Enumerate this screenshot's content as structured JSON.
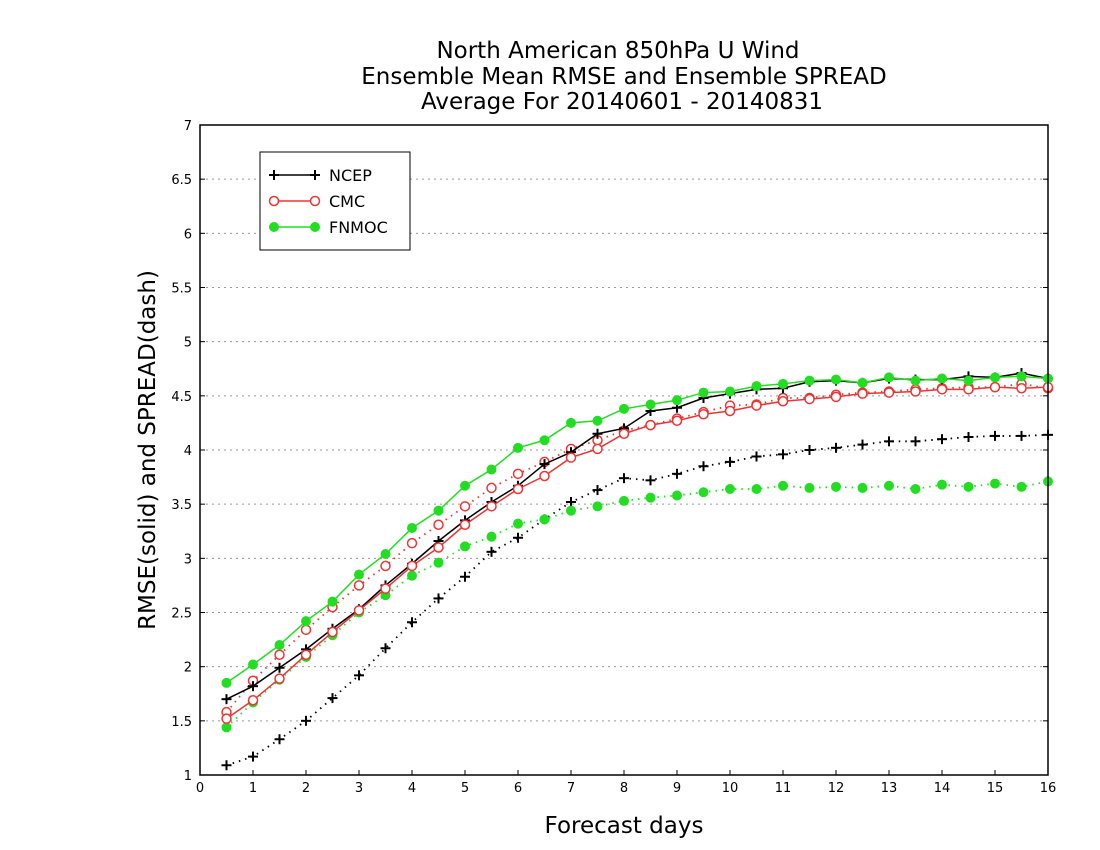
{
  "chart_data": {
    "type": "line",
    "title": [
      "North American 850hPa U Wind",
      "Ensemble Mean RMSE and Ensemble SPREAD",
      "Average For 20140601 - 20140831"
    ],
    "xlabel": "Forecast days",
    "ylabel": "RMSE(solid) and SPREAD(dash)",
    "xlim": [
      0,
      16
    ],
    "ylim": [
      1,
      7
    ],
    "xticks": [
      0,
      1,
      2,
      3,
      4,
      5,
      6,
      7,
      8,
      9,
      10,
      11,
      12,
      13,
      14,
      15,
      16
    ],
    "yticks": [
      1,
      1.5,
      2,
      2.5,
      3,
      3.5,
      4,
      4.5,
      5,
      5.5,
      6,
      6.5,
      7
    ],
    "grid": true,
    "legend_position": "top-left",
    "x": [
      0.5,
      1,
      1.5,
      2,
      2.5,
      3,
      3.5,
      4,
      4.5,
      5,
      5.5,
      6,
      6.5,
      7,
      7.5,
      8,
      8.5,
      9,
      9.5,
      10,
      10.5,
      11,
      11.5,
      12,
      12.5,
      13,
      13.5,
      14,
      14.5,
      15,
      15.5,
      16
    ],
    "series": [
      {
        "name": "NCEP",
        "kind": "rmse",
        "color": "#000000",
        "marker": "plus",
        "values": [
          1.7,
          1.82,
          1.99,
          2.16,
          2.35,
          2.53,
          2.75,
          2.95,
          3.16,
          3.35,
          3.52,
          3.67,
          3.87,
          3.98,
          4.15,
          4.2,
          4.36,
          4.39,
          4.48,
          4.52,
          4.56,
          4.57,
          4.63,
          4.64,
          4.62,
          4.66,
          4.65,
          4.65,
          4.68,
          4.67,
          4.71,
          4.66
        ]
      },
      {
        "name": "CMC",
        "kind": "rmse",
        "color": "#ee3333",
        "marker": "open-circle",
        "values": [
          1.52,
          1.69,
          1.89,
          2.11,
          2.32,
          2.52,
          2.72,
          2.93,
          3.1,
          3.31,
          3.48,
          3.64,
          3.76,
          3.93,
          4.01,
          4.15,
          4.23,
          4.27,
          4.33,
          4.36,
          4.41,
          4.45,
          4.47,
          4.49,
          4.52,
          4.53,
          4.54,
          4.56,
          4.56,
          4.58,
          4.57,
          4.58
        ]
      },
      {
        "name": "FNMOC",
        "kind": "rmse",
        "color": "#22dd22",
        "marker": "filled-circle",
        "values": [
          1.85,
          2.02,
          2.2,
          2.42,
          2.6,
          2.85,
          3.04,
          3.28,
          3.44,
          3.67,
          3.82,
          4.02,
          4.09,
          4.25,
          4.27,
          4.38,
          4.42,
          4.46,
          4.53,
          4.54,
          4.59,
          4.61,
          4.64,
          4.65,
          4.62,
          4.67,
          4.64,
          4.66,
          4.64,
          4.67,
          4.68,
          4.66
        ]
      },
      {
        "name": "NCEP",
        "kind": "spread",
        "color": "#000000",
        "marker": "plus",
        "values": [
          1.09,
          1.17,
          1.33,
          1.5,
          1.71,
          1.92,
          2.17,
          2.41,
          2.63,
          2.83,
          3.06,
          3.19,
          3.36,
          3.52,
          3.63,
          3.74,
          3.72,
          3.78,
          3.85,
          3.89,
          3.94,
          3.96,
          4.0,
          4.02,
          4.05,
          4.08,
          4.08,
          4.1,
          4.12,
          4.13,
          4.13,
          4.14
        ]
      },
      {
        "name": "CMC",
        "kind": "spread",
        "color": "#ee3333",
        "marker": "open-circle",
        "values": [
          1.58,
          1.87,
          2.11,
          2.34,
          2.55,
          2.75,
          2.93,
          3.14,
          3.31,
          3.48,
          3.65,
          3.78,
          3.89,
          4.01,
          4.09,
          4.18,
          4.23,
          4.29,
          4.35,
          4.41,
          4.42,
          4.48,
          4.48,
          4.51,
          4.53,
          4.54,
          4.56,
          4.57,
          4.58,
          4.58,
          4.61,
          4.57
        ]
      },
      {
        "name": "FNMOC",
        "kind": "spread",
        "color": "#22dd22",
        "marker": "filled-circle",
        "values": [
          1.44,
          1.67,
          1.88,
          2.09,
          2.29,
          2.5,
          2.66,
          2.84,
          2.96,
          3.11,
          3.2,
          3.32,
          3.36,
          3.44,
          3.48,
          3.53,
          3.56,
          3.58,
          3.61,
          3.64,
          3.64,
          3.67,
          3.65,
          3.66,
          3.65,
          3.67,
          3.64,
          3.68,
          3.66,
          3.69,
          3.66,
          3.71
        ]
      }
    ]
  }
}
